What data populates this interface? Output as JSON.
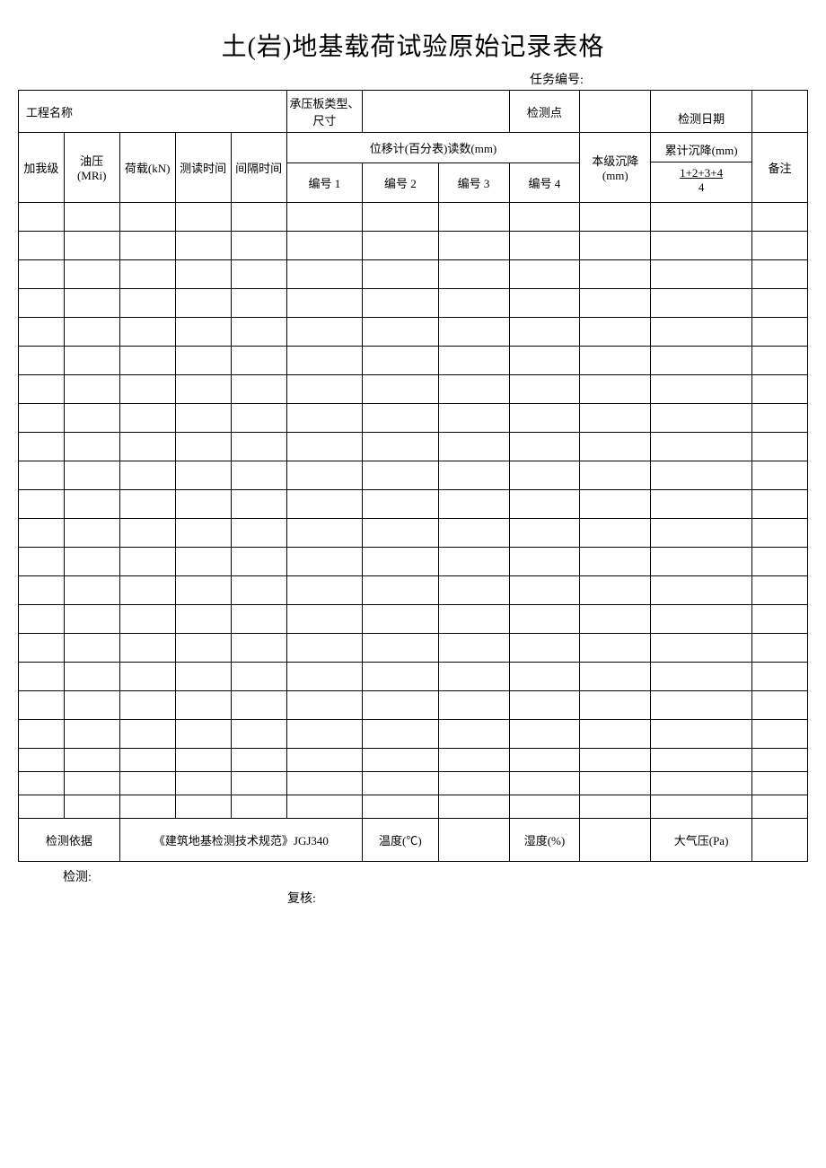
{
  "title": "土(岩)地基载荷试验原始记录表格",
  "task_no_label": "任务编号:",
  "header": {
    "project_name": "工程名称",
    "plate_type": "承压板类型、尺寸",
    "test_point": "检测点",
    "test_date": "检测日期",
    "load_level": "加我级",
    "oil_pressure": "油压(MRi)",
    "load": "荷载(kN)",
    "read_time": "测读时间",
    "interval": "间隔时间",
    "displacement": "位移计(百分表)读数(mm)",
    "no1": "编号 1",
    "no2": "编号 2",
    "no3": "编号 3",
    "no4": "编号 4",
    "level_settle": "本级沉降(mm)",
    "cumul_settle": "累计沉降(mm)",
    "cumul_formula": "1+2+3+4",
    "cumul_divisor": "4",
    "remark": "备注"
  },
  "footer_row": {
    "basis": "检测依据",
    "basis_value": "《建筑地基检测技术规范》JGJ340",
    "temp": "温度(℃)",
    "humidity": "湿度(%)",
    "pressure": "大气压(Pa)"
  },
  "signatures": {
    "inspect": "检测:",
    "review": "复核:"
  },
  "empty_rows": 22,
  "colors": {
    "border": "#000000",
    "background": "#ffffff",
    "text": "#000000"
  },
  "col_widths": {
    "c1": 45,
    "c2": 55,
    "c3": 55,
    "c4": 55,
    "c5": 55,
    "c6": 75,
    "c7": 75,
    "c8": 70,
    "c9": 70,
    "c10": 70,
    "c11": 100,
    "c12": 55
  }
}
